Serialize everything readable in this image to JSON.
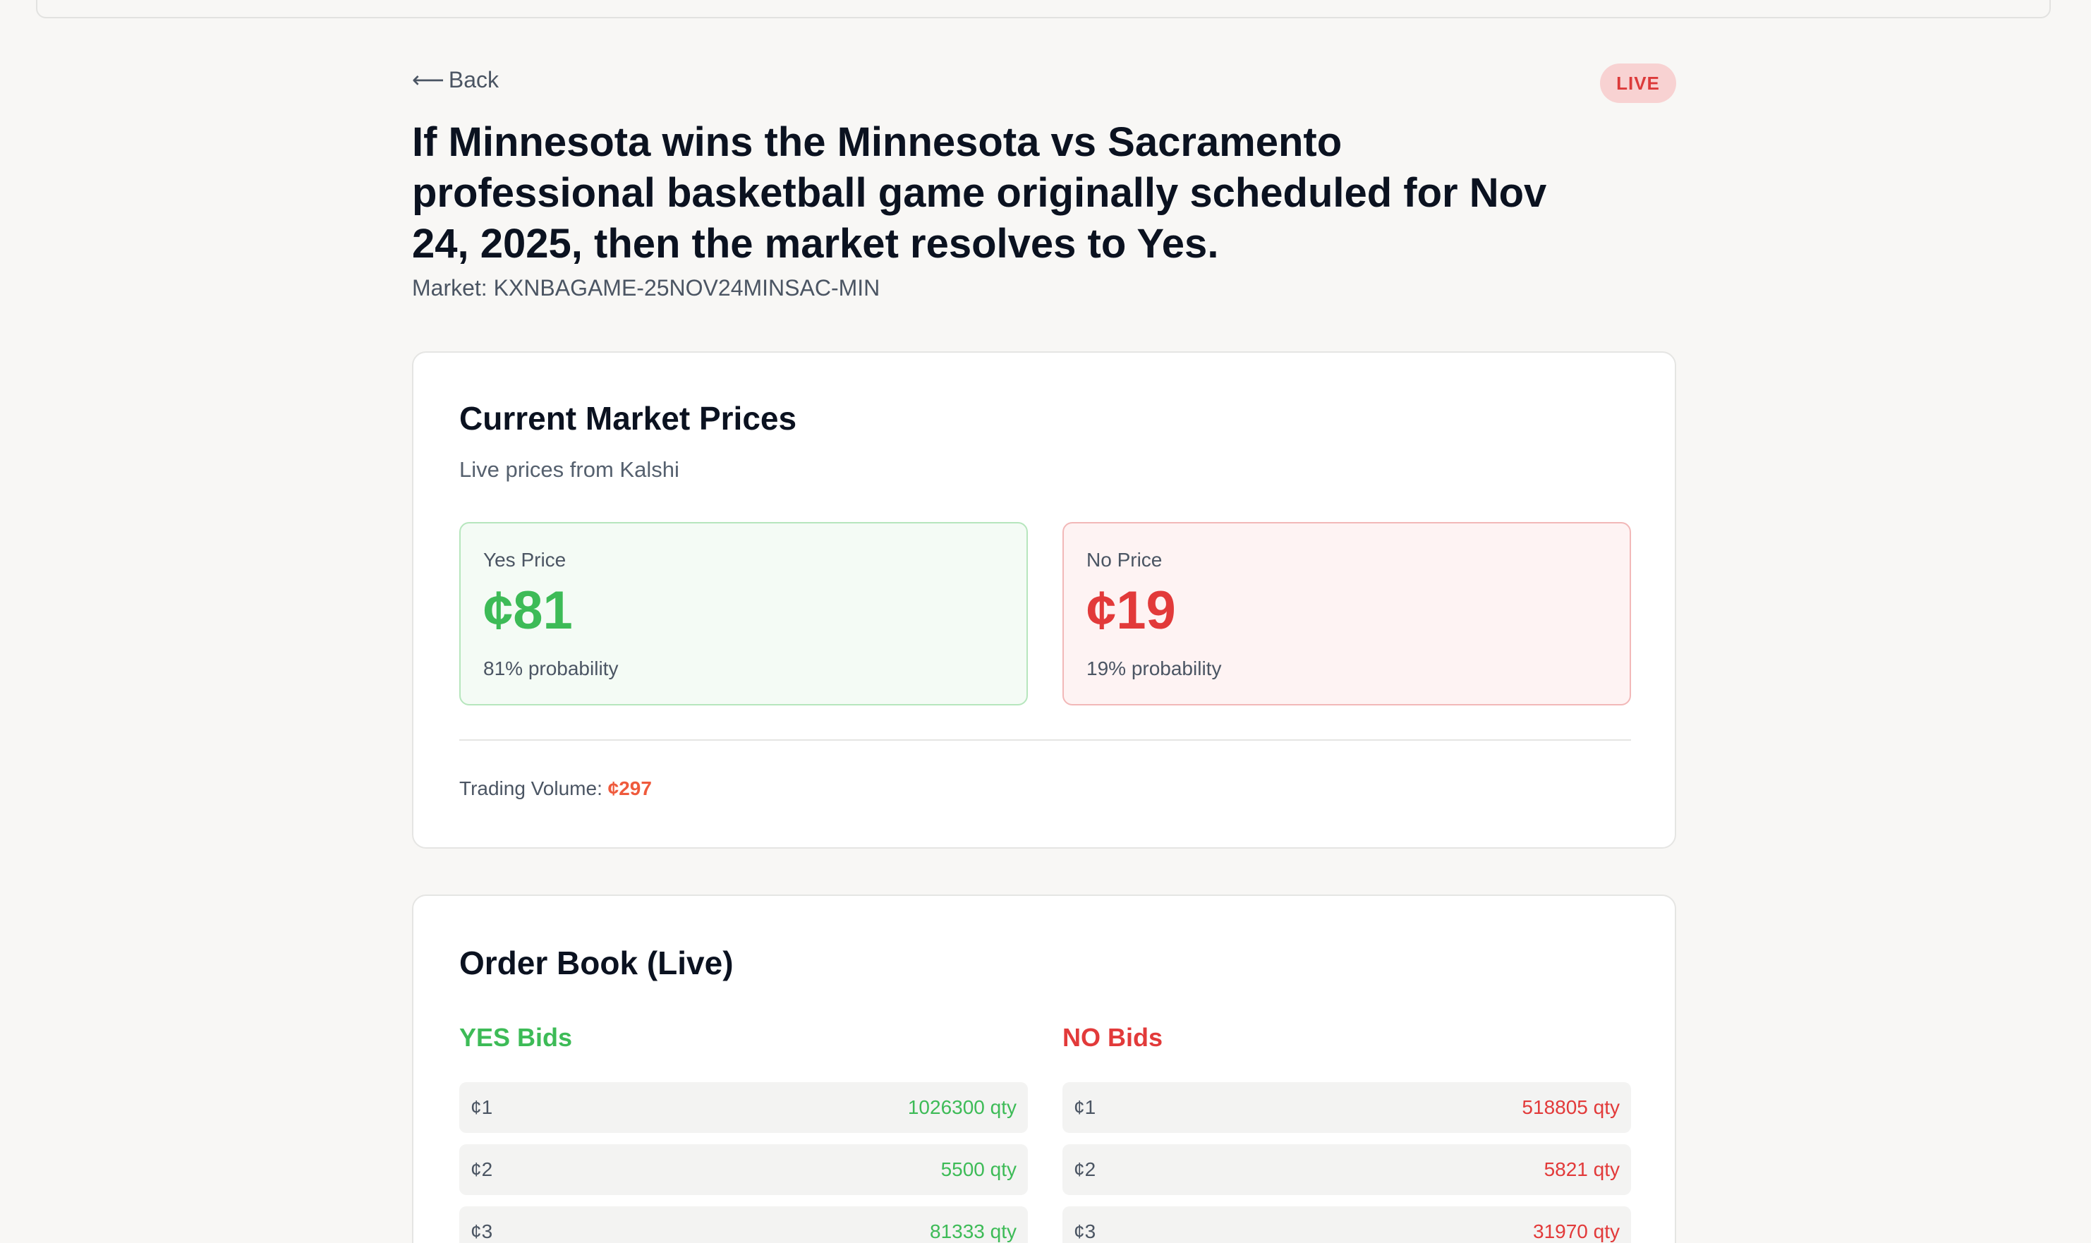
{
  "nav": {
    "back_label": "Back",
    "back_arrow": "⟵"
  },
  "status_badge": "LIVE",
  "market": {
    "title": "If Minnesota wins the Minnesota vs Sacramento professional basketball game originally scheduled for Nov 24, 2025, then the market resolves to Yes.",
    "id_label": "Market: KXNBAGAME-25NOV24MINSAC-MIN"
  },
  "prices": {
    "title": "Current Market Prices",
    "subtitle": "Live prices from Kalshi",
    "yes": {
      "label": "Yes Price",
      "value": "¢81",
      "probability": "81% probability"
    },
    "no": {
      "label": "No Price",
      "value": "¢19",
      "probability": "19% probability"
    },
    "volume_label": "Trading Volume:",
    "volume_value": "¢297"
  },
  "orderbook": {
    "title": "Order Book (Live)",
    "yes_heading": "YES Bids",
    "no_heading": "NO Bids",
    "yes_bids": [
      {
        "price": "¢1",
        "qty": "1026300 qty"
      },
      {
        "price": "¢2",
        "qty": "5500 qty"
      },
      {
        "price": "¢3",
        "qty": "81333 qty"
      }
    ],
    "no_bids": [
      {
        "price": "¢1",
        "qty": "518805 qty"
      },
      {
        "price": "¢2",
        "qty": "5821 qty"
      },
      {
        "price": "¢3",
        "qty": "31970 qty"
      }
    ]
  },
  "colors": {
    "yes": "#3dbb57",
    "no": "#e23a3a",
    "volume": "#ef5a3c",
    "live_badge_bg": "#f8d2d2"
  }
}
